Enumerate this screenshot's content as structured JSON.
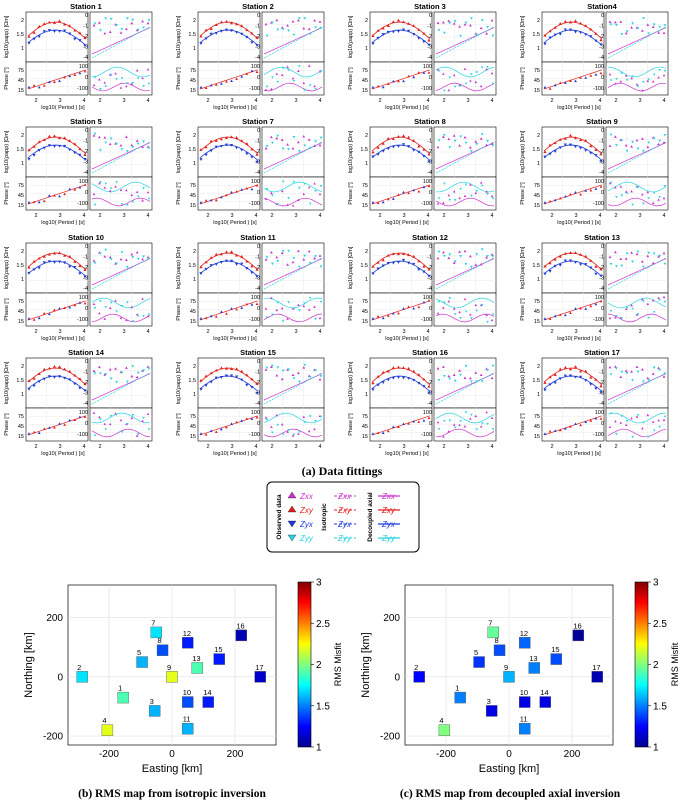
{
  "colors": {
    "zxx": "#cc33cc",
    "zxy": "#e0201c",
    "zyx": "#1f3bd6",
    "zyy": "#28d4e0",
    "border": "#000000"
  },
  "panels": {
    "ylabel_rho": "log10(ρapp) [Ωm]",
    "ylabel_phase": "Phase [°]",
    "xlabel": "log10( Period ) [s]",
    "rho_left_ticks": [
      "2",
      "1.5",
      "1"
    ],
    "rho_right_ticks": [
      "0",
      "-1",
      "-2",
      "-3",
      "-4"
    ],
    "phase_left_ticks": [
      "75",
      "45",
      "15"
    ],
    "phase_right_ticks": [
      "100",
      "0",
      "-100"
    ],
    "x_ticks": [
      "2",
      "3",
      "4"
    ]
  },
  "stations": [
    {
      "title": "Station 1"
    },
    {
      "title": "Station 2"
    },
    {
      "title": "Station 3"
    },
    {
      "title": "Station4"
    },
    {
      "title": "Station 5"
    },
    {
      "title": "Station 7"
    },
    {
      "title": "Station 8"
    },
    {
      "title": "Station 9"
    },
    {
      "title": "Station 10"
    },
    {
      "title": "Station 11"
    },
    {
      "title": "Station 12"
    },
    {
      "title": "Station 13"
    },
    {
      "title": "Station 14"
    },
    {
      "title": "Station 15"
    },
    {
      "title": "Station 16"
    },
    {
      "title": "Station 17"
    }
  ],
  "captions": {
    "a": "(a) Data fittings",
    "b": "(b) RMS map from isotropic inversion",
    "c": "(c) RMS map from decoupled axial inversion"
  },
  "legend": {
    "observed": "Observed data",
    "isotropic": "Isotropic",
    "decoupled": "Decoupled axial",
    "components": [
      "Zxx",
      "Zxy",
      "Zyx",
      "Zyy"
    ]
  },
  "chart_data": [
    {
      "type": "scatter",
      "title": "RMS map from isotropic inversion",
      "xlabel": "Easting [km]",
      "ylabel": "Northing [km]",
      "xlim": [
        -330,
        330
      ],
      "ylim": [
        -230,
        310
      ],
      "xticks": [
        -200,
        0,
        200
      ],
      "yticks": [
        -200,
        0,
        200
      ],
      "grid": true,
      "colorbar": {
        "label": "RMS Misfit",
        "min": 1,
        "max": 3,
        "ticks": [
          "1",
          "1.5",
          "2",
          "2.5",
          "3"
        ]
      },
      "points": [
        {
          "label": "1",
          "x": -155,
          "y": -70,
          "rms": 1.9
        },
        {
          "label": "2",
          "x": -285,
          "y": 0,
          "rms": 1.7
        },
        {
          "label": "3",
          "x": -55,
          "y": -115,
          "rms": 1.6
        },
        {
          "label": "4",
          "x": -205,
          "y": -180,
          "rms": 2.2
        },
        {
          "label": "5",
          "x": -95,
          "y": 50,
          "rms": 1.6
        },
        {
          "label": "7",
          "x": -50,
          "y": 150,
          "rms": 1.7
        },
        {
          "label": "8",
          "x": -30,
          "y": 90,
          "rms": 1.4
        },
        {
          "label": "9",
          "x": 0,
          "y": 0,
          "rms": 2.2
        },
        {
          "label": "10",
          "x": 50,
          "y": -85,
          "rms": 1.4
        },
        {
          "label": "11",
          "x": 50,
          "y": -175,
          "rms": 1.6
        },
        {
          "label": "12",
          "x": 50,
          "y": 115,
          "rms": 1.3
        },
        {
          "label": "13",
          "x": 80,
          "y": 30,
          "rms": 1.9
        },
        {
          "label": "14",
          "x": 115,
          "y": -85,
          "rms": 1.3
        },
        {
          "label": "15",
          "x": 150,
          "y": 60,
          "rms": 1.3
        },
        {
          "label": "16",
          "x": 220,
          "y": 140,
          "rms": 1.1
        },
        {
          "label": "17",
          "x": 280,
          "y": 0,
          "rms": 1.15
        }
      ]
    },
    {
      "type": "scatter",
      "title": "RMS map from decoupled axial inversion",
      "xlabel": "Easting [km]",
      "ylabel": "Northing [km]",
      "xlim": [
        -330,
        330
      ],
      "ylim": [
        -230,
        310
      ],
      "xticks": [
        -200,
        0,
        200
      ],
      "yticks": [
        -200,
        0,
        200
      ],
      "grid": true,
      "colorbar": {
        "label": "RMS Misfit",
        "min": 1,
        "max": 3,
        "ticks": [
          "1",
          "1.5",
          "2",
          "2.5",
          "3"
        ]
      },
      "points": [
        {
          "label": "1",
          "x": -155,
          "y": -70,
          "rms": 1.5
        },
        {
          "label": "2",
          "x": -285,
          "y": 0,
          "rms": 1.25
        },
        {
          "label": "3",
          "x": -55,
          "y": -115,
          "rms": 1.2
        },
        {
          "label": "4",
          "x": -205,
          "y": -180,
          "rms": 2.0
        },
        {
          "label": "5",
          "x": -95,
          "y": 50,
          "rms": 1.35
        },
        {
          "label": "7",
          "x": -50,
          "y": 150,
          "rms": 1.95
        },
        {
          "label": "8",
          "x": -30,
          "y": 90,
          "rms": 1.4
        },
        {
          "label": "9",
          "x": 0,
          "y": 0,
          "rms": 1.6
        },
        {
          "label": "10",
          "x": 50,
          "y": -85,
          "rms": 1.2
        },
        {
          "label": "11",
          "x": 50,
          "y": -175,
          "rms": 1.5
        },
        {
          "label": "12",
          "x": 50,
          "y": 115,
          "rms": 1.45
        },
        {
          "label": "13",
          "x": 80,
          "y": 30,
          "rms": 1.5
        },
        {
          "label": "14",
          "x": 115,
          "y": -85,
          "rms": 1.2
        },
        {
          "label": "15",
          "x": 150,
          "y": 60,
          "rms": 1.4
        },
        {
          "label": "16",
          "x": 220,
          "y": 140,
          "rms": 1.05
        },
        {
          "label": "17",
          "x": 280,
          "y": 0,
          "rms": 1.1
        }
      ]
    }
  ]
}
